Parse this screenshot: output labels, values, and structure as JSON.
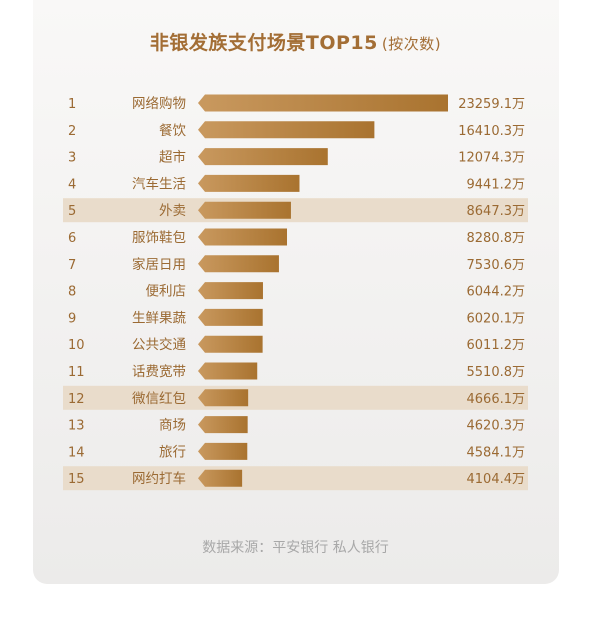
{
  "chart_data": {
    "type": "bar",
    "title": "非银发族支付场景TOP15",
    "subtitle": "(按次数)",
    "unit_suffix": "万",
    "categories": [
      "网络购物",
      "餐饮",
      "超市",
      "汽车生活",
      "外卖",
      "服饰鞋包",
      "家居日用",
      "便利店",
      "生鲜果蔬",
      "公共交通",
      "话费宽带",
      "微信红包",
      "商场",
      "旅行",
      "网约打车"
    ],
    "ranks": [
      "1",
      "2",
      "3",
      "4",
      "5",
      "6",
      "7",
      "8",
      "9",
      "10",
      "11",
      "12",
      "13",
      "14",
      "15"
    ],
    "values": [
      23259.1,
      16410.3,
      12074.3,
      9441.2,
      8647.3,
      8280.8,
      7530.6,
      6044.2,
      6020.1,
      6011.2,
      5510.8,
      4666.1,
      4620.3,
      4584.1,
      4104.4
    ],
    "value_labels": [
      "23259.1万",
      "16410.3万",
      "12074.3万",
      "9441.2万",
      "8647.3万",
      "8280.8万",
      "7530.6万",
      "6044.2万",
      "6020.1万",
      "6011.2万",
      "5510.8万",
      "4666.1万",
      "4620.3万",
      "4584.1万",
      "4104.4万"
    ],
    "highlighted": [
      "外卖",
      "微信红包",
      "网约打车"
    ],
    "bar_color_start": "#c9995f",
    "bar_color_end": "#a9732f",
    "highlight_color": "#e9dccb",
    "text_color": "#9b6a33"
  },
  "source": "数据来源：平安银行 私人银行"
}
